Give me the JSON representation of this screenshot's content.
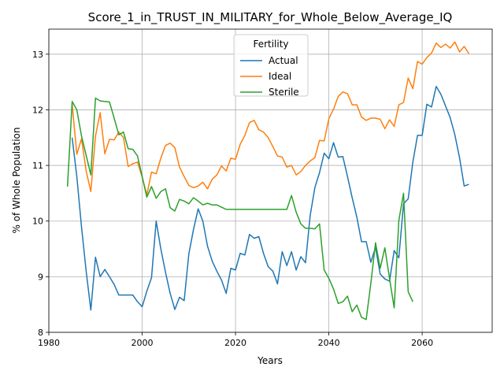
{
  "chart_data": {
    "type": "line",
    "title": "Score_1_in_TRUST_IN_MILITARY_for_Whole_Below_Average_IQ",
    "xlabel": "Years",
    "ylabel": "% of Whole Population",
    "xlim": [
      1980,
      2075
    ],
    "ylim": [
      8.0,
      13.45
    ],
    "xticks": [
      1980,
      2000,
      2020,
      2040,
      2060
    ],
    "yticks": [
      8,
      9,
      10,
      11,
      12,
      13
    ],
    "grid": true,
    "legend": {
      "title": "Fertility",
      "placement": "top-center"
    },
    "series": [
      {
        "name": "Actual",
        "color": "#1f77b4",
        "x": [
          1985,
          1986,
          1987,
          1988,
          1989,
          1990,
          1991,
          1992,
          1993,
          1994,
          1995,
          1996,
          1997,
          1998,
          1999,
          2000,
          2001,
          2002,
          2003,
          2004,
          2005,
          2006,
          2007,
          2008,
          2009,
          2010,
          2011,
          2012,
          2013,
          2014,
          2015,
          2016,
          2017,
          2018,
          2019,
          2020,
          2021,
          2022,
          2023,
          2024,
          2025,
          2026,
          2027,
          2028,
          2029,
          2030,
          2031,
          2032,
          2033,
          2034,
          2035,
          2036,
          2037,
          2038,
          2039,
          2040,
          2041,
          2042,
          2043,
          2044,
          2045,
          2046,
          2047,
          2048,
          2049,
          2050,
          2051,
          2052,
          2053,
          2054,
          2055,
          2056,
          2057,
          2058,
          2059,
          2060,
          2061,
          2062,
          2063,
          2064,
          2065,
          2066,
          2067,
          2068,
          2069,
          2070
        ],
        "y": [
          11.5,
          10.8,
          9.9,
          9.1,
          8.4,
          9.35,
          9.0,
          9.13,
          9.0,
          8.86,
          8.67,
          8.67,
          8.67,
          8.67,
          8.55,
          8.46,
          8.74,
          8.98,
          10.0,
          9.5,
          9.08,
          8.7,
          8.41,
          8.63,
          8.57,
          9.41,
          9.85,
          10.22,
          10.0,
          9.55,
          9.28,
          9.1,
          8.94,
          8.7,
          9.15,
          9.12,
          9.42,
          9.39,
          9.76,
          9.69,
          9.72,
          9.42,
          9.18,
          9.1,
          8.87,
          9.45,
          9.2,
          9.45,
          9.12,
          9.36,
          9.25,
          10.1,
          10.6,
          10.87,
          11.22,
          11.12,
          11.41,
          11.15,
          11.16,
          10.8,
          10.42,
          10.07,
          9.63,
          9.63,
          9.26,
          9.53,
          9.05,
          8.96,
          8.92,
          9.47,
          9.34,
          10.31,
          10.4,
          11.06,
          11.54,
          11.54,
          12.1,
          12.05,
          12.42,
          12.28,
          12.07,
          11.86,
          11.55,
          11.14,
          10.63,
          10.66
        ]
      },
      {
        "name": "Ideal",
        "color": "#ff7f0e",
        "x": [
          1985,
          1986,
          1987,
          1988,
          1989,
          1990,
          1991,
          1992,
          1993,
          1994,
          1995,
          1996,
          1997,
          1998,
          1999,
          2000,
          2001,
          2002,
          2003,
          2004,
          2005,
          2006,
          2007,
          2008,
          2009,
          2010,
          2011,
          2012,
          2013,
          2014,
          2015,
          2016,
          2017,
          2018,
          2019,
          2020,
          2021,
          2022,
          2023,
          2024,
          2025,
          2026,
          2027,
          2028,
          2029,
          2030,
          2031,
          2032,
          2033,
          2034,
          2035,
          2036,
          2037,
          2038,
          2039,
          2040,
          2041,
          2042,
          2043,
          2044,
          2045,
          2046,
          2047,
          2048,
          2049,
          2050,
          2051,
          2052,
          2053,
          2054,
          2055,
          2056,
          2057,
          2058,
          2059,
          2060,
          2061,
          2062,
          2063,
          2064,
          2065,
          2066,
          2067,
          2068,
          2069,
          2070
        ],
        "y": [
          12.1,
          11.2,
          11.48,
          10.9,
          10.53,
          11.53,
          11.95,
          11.21,
          11.47,
          11.46,
          11.6,
          11.5,
          10.98,
          11.03,
          11.06,
          10.79,
          10.47,
          10.88,
          10.85,
          11.13,
          11.36,
          11.4,
          11.32,
          10.97,
          10.8,
          10.64,
          10.6,
          10.63,
          10.7,
          10.58,
          10.75,
          10.83,
          10.99,
          10.9,
          11.13,
          11.11,
          11.38,
          11.54,
          11.77,
          11.81,
          11.64,
          11.6,
          11.5,
          11.34,
          11.17,
          11.15,
          10.97,
          11.0,
          10.83,
          10.89,
          11.0,
          11.08,
          11.14,
          11.45,
          11.44,
          11.84,
          12.01,
          12.24,
          12.32,
          12.29,
          12.09,
          12.09,
          11.87,
          11.81,
          11.85,
          11.85,
          11.83,
          11.66,
          11.82,
          11.7,
          12.09,
          12.13,
          12.57,
          12.38,
          12.87,
          12.82,
          12.94,
          13.02,
          13.2,
          13.12,
          13.18,
          13.11,
          13.22,
          13.04,
          13.14,
          13.01
        ]
      },
      {
        "name": "Sterile",
        "color": "#2ca02c",
        "x": [
          1984,
          1985,
          1986,
          1987,
          1988,
          1989,
          1990,
          1991,
          1992,
          1993,
          1994,
          1995,
          1996,
          1997,
          1998,
          1999,
          2000,
          2001,
          2002,
          2003,
          2004,
          2005,
          2006,
          2007,
          2008,
          2009,
          2010,
          2011,
          2012,
          2013,
          2014,
          2015,
          2016,
          2017,
          2018,
          2019,
          2020,
          2021,
          2022,
          2023,
          2024,
          2025,
          2026,
          2027,
          2028,
          2029,
          2030,
          2031,
          2032,
          2033,
          2034,
          2035,
          2036,
          2037,
          2038,
          2039,
          2040,
          2041,
          2042,
          2043,
          2044,
          2045,
          2046,
          2047,
          2048,
          2049,
          2050,
          2051,
          2052,
          2053,
          2054,
          2055,
          2056,
          2057,
          2058
        ],
        "y": [
          10.62,
          12.15,
          12.0,
          11.53,
          11.18,
          10.83,
          12.21,
          12.16,
          12.15,
          12.14,
          11.85,
          11.55,
          11.6,
          11.3,
          11.29,
          11.17,
          10.8,
          10.43,
          10.62,
          10.41,
          10.53,
          10.58,
          10.24,
          10.18,
          10.39,
          10.36,
          10.31,
          10.42,
          10.36,
          10.29,
          10.32,
          10.29,
          10.29,
          10.25,
          10.21,
          10.21,
          10.21,
          10.21,
          10.21,
          10.21,
          10.21,
          10.21,
          10.21,
          10.21,
          10.21,
          10.21,
          10.21,
          10.21,
          10.46,
          10.16,
          9.95,
          9.87,
          9.87,
          9.86,
          9.95,
          9.12,
          8.97,
          8.78,
          8.52,
          8.55,
          8.65,
          8.37,
          8.49,
          8.27,
          8.23,
          8.88,
          9.61,
          9.15,
          9.52,
          8.97,
          8.44,
          10.01,
          10.5,
          8.73,
          8.55
        ]
      }
    ]
  }
}
